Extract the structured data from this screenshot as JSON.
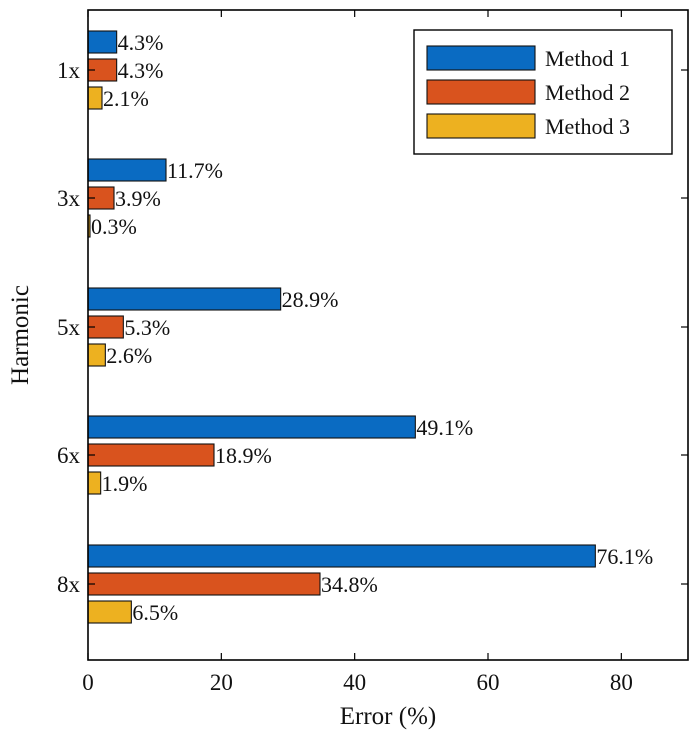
{
  "chart_data": {
    "type": "bar",
    "orientation": "horizontal",
    "xlabel": "Error (%)",
    "ylabel": "Harmonic",
    "categories": [
      "1x",
      "3x",
      "5x",
      "6x",
      "8x"
    ],
    "xlim": [
      0,
      90
    ],
    "xticks": [
      0,
      20,
      40,
      60,
      80
    ],
    "grid": false,
    "legend_position": "top-right",
    "series": [
      {
        "name": "Method 1",
        "color": "#0a6bc2",
        "values": [
          4.3,
          11.7,
          28.9,
          49.1,
          76.1
        ],
        "labels": [
          "4.3%",
          "11.7%",
          "28.9%",
          "49.1%",
          "76.1%"
        ]
      },
      {
        "name": "Method 2",
        "color": "#d9531e",
        "values": [
          4.3,
          3.9,
          5.3,
          18.9,
          34.8
        ],
        "labels": [
          "4.3%",
          "3.9%",
          "5.3%",
          "18.9%",
          "34.8%"
        ]
      },
      {
        "name": "Method 3",
        "color": "#edb120",
        "values": [
          2.1,
          0.3,
          2.6,
          1.9,
          6.5
        ],
        "labels": [
          "2.1%",
          "0.3%",
          "2.6%",
          "1.9%",
          "6.5%"
        ]
      }
    ]
  }
}
